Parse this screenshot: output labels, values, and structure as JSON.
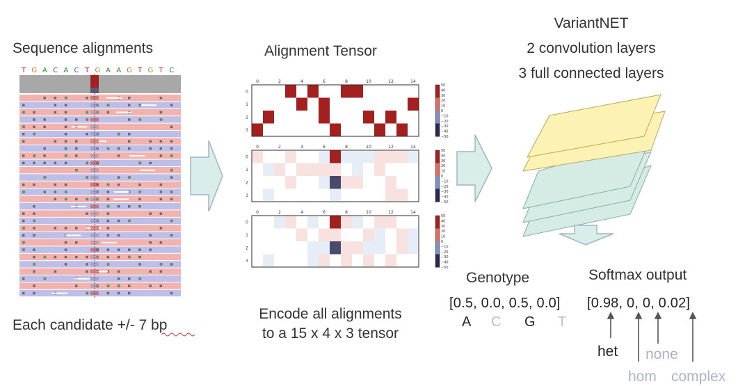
{
  "alignments": {
    "title": "Sequence alignments",
    "reference": [
      "T",
      "G",
      "A",
      "C",
      "A",
      "C",
      "T",
      "G",
      "A",
      "A",
      "G",
      "T",
      "G",
      "T",
      "C"
    ],
    "footer": "Each candidate +/- 7 bp"
  },
  "tensor": {
    "title": "Alignment Tensor",
    "x_ticks": [
      "0",
      "2",
      "4",
      "6",
      "8",
      "10",
      "12",
      "14"
    ],
    "y_ticks": [
      "0",
      "1",
      "2",
      "3"
    ],
    "colorbar_ticks": [
      "50",
      "40",
      "30",
      "20",
      "10",
      "0",
      "−10",
      "−20",
      "−30",
      "−40",
      "−50"
    ],
    "caption_line1": "Encode all alignments",
    "caption_line2": "to a 15 x 4 x 3 tensor"
  },
  "network": {
    "title": "VariantNET",
    "line2": "2 convolution layers",
    "line3": "3 full connected layers"
  },
  "genotype": {
    "title": "Genotype",
    "vector": "[0.5, 0.0, 0.5, 0.0]",
    "bases": [
      {
        "label": "A",
        "color": "#222222"
      },
      {
        "label": "C",
        "color": "#b8bfcf"
      },
      {
        "label": "G",
        "color": "#222222"
      },
      {
        "label": "T",
        "color": "#b8bfcf"
      }
    ]
  },
  "softmax": {
    "title": "Softmax output",
    "vector": "[0.98, 0, 0, 0.02]",
    "labels": {
      "het": "het",
      "hom": "hom",
      "none": "none",
      "complex": "complex"
    }
  },
  "colors": {
    "arrow_fill": "#d9eeea",
    "arrow_stroke": "#9fb5bf",
    "dark_red": "#a32020",
    "navy": "#4a4a6a",
    "yellow_layer": "#fbf2b4",
    "teal_layer": "#d4ece4",
    "row_red": "#f2b2ae",
    "row_blue": "#bdbfe8"
  }
}
